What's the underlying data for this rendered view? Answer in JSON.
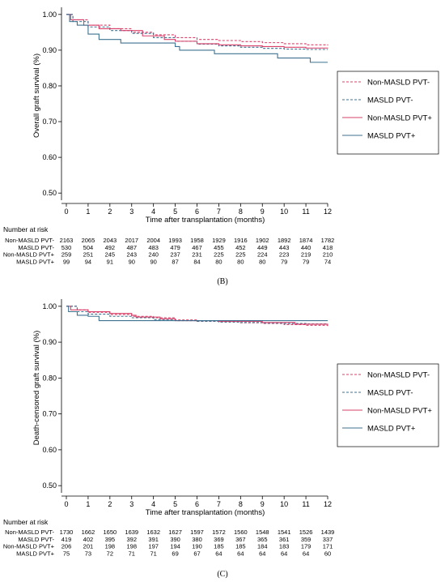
{
  "colors": {
    "non_masld_pvt_neg": "#d9406a",
    "masld_pvt_neg": "#3f7291",
    "non_masld_pvt_pos": "#d9406a",
    "masld_pvt_pos": "#3f7291"
  },
  "chart_data": [
    {
      "type": "line",
      "panel_label": "(B)",
      "ylabel": "Overall graft survival (%)",
      "xlabel": "Time after transplantation (months)",
      "xlim": [
        0,
        12
      ],
      "ylim": [
        0.48,
        1.02
      ],
      "x_ticks": [
        "0",
        "1",
        "2",
        "3",
        "4",
        "5",
        "6",
        "7",
        "8",
        "9",
        "10",
        "11",
        "12"
      ],
      "y_ticks": [
        "1.00",
        "0.90",
        "0.80",
        "0.70",
        "0.60",
        "0.50"
      ],
      "y_tick_values": [
        1.0,
        0.9,
        0.8,
        0.7,
        0.6,
        0.5
      ],
      "legend_position": "right",
      "series": [
        {
          "name": "Non-MASLD PVT-",
          "style": "dashed",
          "color_key": "non_masld_pvt_neg",
          "points": [
            [
              0,
              1.0
            ],
            [
              0.3,
              0.985
            ],
            [
              1,
              0.97
            ],
            [
              2,
              0.96
            ],
            [
              3,
              0.95
            ],
            [
              4,
              0.943
            ],
            [
              5,
              0.935
            ],
            [
              6,
              0.93
            ],
            [
              7,
              0.927
            ],
            [
              8,
              0.924
            ],
            [
              9,
              0.921
            ],
            [
              10,
              0.918
            ],
            [
              11,
              0.915
            ],
            [
              12,
              0.913
            ]
          ]
        },
        {
          "name": "MASLD PVT-",
          "style": "dashed",
          "color_key": "masld_pvt_neg",
          "points": [
            [
              0,
              1.0
            ],
            [
              0.3,
              0.98
            ],
            [
              1,
              0.965
            ],
            [
              2,
              0.955
            ],
            [
              3,
              0.947
            ],
            [
              4,
              0.935
            ],
            [
              5,
              0.925
            ],
            [
              6,
              0.917
            ],
            [
              7,
              0.912
            ],
            [
              8,
              0.908
            ],
            [
              9,
              0.905
            ],
            [
              10,
              0.903
            ],
            [
              11,
              0.902
            ],
            [
              12,
              0.902
            ]
          ]
        },
        {
          "name": "Non-MASLD PVT+",
          "style": "solid",
          "color_key": "non_masld_pvt_pos",
          "points": [
            [
              0,
              1.0
            ],
            [
              0.2,
              0.985
            ],
            [
              0.8,
              0.97
            ],
            [
              1.5,
              0.96
            ],
            [
              2.5,
              0.955
            ],
            [
              3.5,
              0.94
            ],
            [
              4.5,
              0.93
            ],
            [
              5,
              0.925
            ],
            [
              6,
              0.918
            ],
            [
              7,
              0.915
            ],
            [
              8,
              0.912
            ],
            [
              9,
              0.91
            ],
            [
              10,
              0.908
            ],
            [
              11,
              0.906
            ],
            [
              12,
              0.905
            ]
          ]
        },
        {
          "name": "MASLD PVT+",
          "style": "solid",
          "color_key": "masld_pvt_pos",
          "points": [
            [
              0,
              1.0
            ],
            [
              0.15,
              0.98
            ],
            [
              0.5,
              0.97
            ],
            [
              1,
              0.945
            ],
            [
              1.5,
              0.93
            ],
            [
              2.5,
              0.92
            ],
            [
              5,
              0.91
            ],
            [
              5.2,
              0.9
            ],
            [
              6.8,
              0.89
            ],
            [
              9.7,
              0.878
            ],
            [
              11.2,
              0.866
            ],
            [
              12,
              0.866
            ]
          ]
        }
      ],
      "risk_table": {
        "title": "Number at risk",
        "rows": [
          {
            "label": "Non-MASLD PVT-",
            "values": [
              "2163",
              "2065",
              "2043",
              "2017",
              "2004",
              "1993",
              "1958",
              "1929",
              "1916",
              "1902",
              "1892",
              "1874",
              "1782"
            ]
          },
          {
            "label": "MASLD PVT-",
            "values": [
              "530",
              "504",
              "492",
              "487",
              "483",
              "479",
              "467",
              "455",
              "452",
              "449",
              "443",
              "440",
              "418"
            ]
          },
          {
            "label": "Non-MASLD PVT+",
            "values": [
              "259",
              "251",
              "245",
              "243",
              "240",
              "237",
              "231",
              "225",
              "225",
              "224",
              "223",
              "219",
              "210"
            ]
          },
          {
            "label": "MASLD PVT+",
            "values": [
              "99",
              "94",
              "91",
              "90",
              "90",
              "87",
              "84",
              "80",
              "80",
              "80",
              "79",
              "79",
              "74"
            ]
          }
        ]
      }
    },
    {
      "type": "line",
      "panel_label": "(C)",
      "ylabel": "Death-censored graft survival (%)",
      "xlabel": "Time after transplantation (months)",
      "xlim": [
        0,
        12
      ],
      "ylim": [
        0.48,
        1.02
      ],
      "x_ticks": [
        "0",
        "1",
        "2",
        "3",
        "4",
        "5",
        "6",
        "7",
        "8",
        "9",
        "10",
        "11",
        "12"
      ],
      "y_ticks": [
        "1.00",
        "0.90",
        "0.80",
        "0.70",
        "0.60",
        "0.50"
      ],
      "y_tick_values": [
        1.0,
        0.9,
        0.8,
        0.7,
        0.6,
        0.5
      ],
      "legend_position": "right",
      "series": [
        {
          "name": "Non-MASLD PVT-",
          "style": "dashed",
          "color_key": "non_masld_pvt_neg",
          "points": [
            [
              0,
              1.0
            ],
            [
              0.5,
              0.99
            ],
            [
              1,
              0.983
            ],
            [
              2,
              0.977
            ],
            [
              3,
              0.972
            ],
            [
              4,
              0.968
            ],
            [
              5,
              0.962
            ],
            [
              6,
              0.958
            ],
            [
              7,
              0.956
            ],
            [
              8,
              0.954
            ],
            [
              9,
              0.952
            ],
            [
              10,
              0.949
            ],
            [
              11,
              0.947
            ],
            [
              12,
              0.945
            ]
          ]
        },
        {
          "name": "MASLD PVT-",
          "style": "dashed",
          "color_key": "masld_pvt_neg",
          "points": [
            [
              0,
              1.0
            ],
            [
              0.5,
              0.985
            ],
            [
              1,
              0.978
            ],
            [
              2,
              0.972
            ],
            [
              3,
              0.968
            ],
            [
              4,
              0.963
            ],
            [
              5,
              0.96
            ],
            [
              6,
              0.958
            ],
            [
              7,
              0.956
            ],
            [
              8,
              0.955
            ],
            [
              9,
              0.953
            ],
            [
              10,
              0.952
            ],
            [
              11,
              0.951
            ],
            [
              12,
              0.95
            ]
          ]
        },
        {
          "name": "Non-MASLD PVT+",
          "style": "solid",
          "color_key": "non_masld_pvt_pos",
          "points": [
            [
              0,
              1.0
            ],
            [
              0.2,
              0.99
            ],
            [
              1,
              0.985
            ],
            [
              2,
              0.98
            ],
            [
              3,
              0.975
            ],
            [
              3.2,
              0.97
            ],
            [
              4.3,
              0.965
            ],
            [
              5,
              0.96
            ],
            [
              7,
              0.958
            ],
            [
              9,
              0.955
            ],
            [
              10.5,
              0.95
            ],
            [
              12,
              0.948
            ]
          ]
        },
        {
          "name": "MASLD PVT+",
          "style": "solid",
          "color_key": "masld_pvt_pos",
          "points": [
            [
              0,
              1.0
            ],
            [
              0.1,
              0.985
            ],
            [
              0.5,
              0.975
            ],
            [
              1,
              0.972
            ],
            [
              1.5,
              0.96
            ],
            [
              12,
              0.96
            ]
          ]
        }
      ],
      "risk_table": {
        "title": "Number at risk",
        "rows": [
          {
            "label": "Non-MASLD PVT-",
            "values": [
              "1730",
              "1662",
              "1650",
              "1639",
              "1632",
              "1627",
              "1597",
              "1572",
              "1560",
              "1548",
              "1541",
              "1526",
              "1439"
            ]
          },
          {
            "label": "MASLD PVT-",
            "values": [
              "419",
              "402",
              "395",
              "392",
              "391",
              "390",
              "380",
              "369",
              "367",
              "365",
              "361",
              "359",
              "337"
            ]
          },
          {
            "label": "Non-MASLD PVT+",
            "values": [
              "206",
              "201",
              "198",
              "198",
              "197",
              "194",
              "190",
              "185",
              "185",
              "184",
              "183",
              "179",
              "171"
            ]
          },
          {
            "label": "MASLD PVT+",
            "values": [
              "75",
              "73",
              "72",
              "71",
              "71",
              "69",
              "67",
              "64",
              "64",
              "64",
              "64",
              "64",
              "60"
            ]
          }
        ]
      }
    }
  ]
}
